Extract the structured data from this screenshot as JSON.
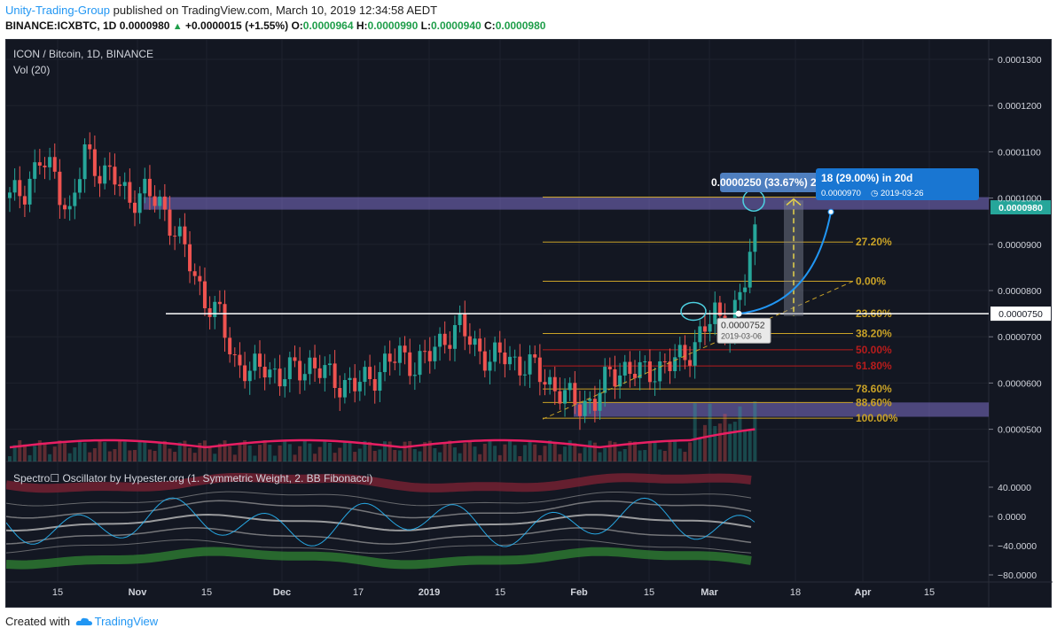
{
  "header": {
    "author": "Unity-Trading-Group",
    "published_text": " published on TradingView.com, March 10, 2019 12:34:58 AEDT",
    "symbol": "BINANCE:ICXBTC, 1D",
    "last": "0.0000980",
    "change": "+0.0000015 (+1.55%)",
    "open_label": "O:",
    "open": "0.0000964",
    "high_label": "H:",
    "high": "0.0000990",
    "low_label": "L:",
    "low": "0.0000940",
    "close_label": "C:",
    "close": "0.0000980"
  },
  "chart": {
    "title": "ICON / Bitcoin, 1D, BINANCE",
    "volume_label": "Vol (20)",
    "colors": {
      "up": "#26a69a",
      "down": "#ef5350",
      "background": "#131722",
      "fib": "#c9a227",
      "fib_red": "#b71c1c",
      "zone": "#7e6fc9",
      "ma": "#e91e63",
      "measure": "#2196f3"
    },
    "price_axis": {
      "ticks": [
        "0.0001300",
        "0.0001200",
        "0.0001100",
        "0.0001000",
        "0.0000900",
        "0.0000800",
        "0.0000700",
        "0.0000600",
        "0.0000500"
      ],
      "current_price_tag": "0.0000980",
      "level_tag": "0.0000750"
    },
    "time_axis": [
      "15",
      "Nov",
      "15",
      "Dec",
      "17",
      "2019",
      "15",
      "Feb",
      "15",
      "Mar",
      "18",
      "Apr",
      "15"
    ],
    "fib_levels": [
      {
        "label": "27.20%",
        "price": 9.05e-05,
        "color": "fib"
      },
      {
        "label": "0.00%",
        "price": 8.2e-05,
        "color": "fib"
      },
      {
        "label": "23.60%",
        "price": 7.5e-05,
        "color": "fib"
      },
      {
        "label": "38.20%",
        "price": 7.07e-05,
        "color": "fib"
      },
      {
        "label": "50.00%",
        "price": 6.72e-05,
        "color": "fib_red"
      },
      {
        "label": "61.80%",
        "price": 6.37e-05,
        "color": "fib_red"
      },
      {
        "label": "78.60%",
        "price": 5.87e-05,
        "color": "fib"
      },
      {
        "label": "88.60%",
        "price": 5.58e-05,
        "color": "fib"
      },
      {
        "label": "100.00%",
        "price": 5.24e-05,
        "color": "fib"
      }
    ],
    "measure_label": "0.0000250 (33.67%) 250",
    "projection_label": "18 (29.00%) in 20d",
    "projection_sublabel": "0.0000970",
    "projection_date": "2019-03-26",
    "point_price": "0.0000752",
    "point_date": "2019-03-06",
    "oscillator_title": "Spectro☐ Oscillator by Hypester.org (1. Symmetric Weight, 2. BB Fibonacci)",
    "oscillator_ticks": [
      "40.0000",
      "0.0000",
      "−40.0000",
      "−80.0000"
    ]
  },
  "chart_data": {
    "type": "candlestick",
    "title": "ICON / Bitcoin, 1D, BINANCE",
    "xlabel": "",
    "ylabel": "",
    "ylim": [
      4.2e-05,
      0.000135
    ],
    "close_series": [
      0.0001,
      0.000102,
      0.000108,
      0.000105,
      9.6e-05,
      0.00011,
      0.000106,
      0.000104,
      0.0001,
      0.000101,
      9.9e-05,
      9.3e-05,
      8.6e-05,
      7.8e-05,
      7.4e-05,
      6.5e-05,
      6.2e-05,
      6.4e-05,
      6.1e-05,
      6.3e-05,
      6.4e-05,
      6.2e-05,
      6e-05,
      5.95e-05,
      6.1e-05,
      6.4e-05,
      6.6e-05,
      6.4e-05,
      6.6e-05,
      7e-05,
      7.2e-05,
      6.8e-05,
      6.5e-05,
      6.6e-05,
      6.4e-05,
      6.3e-05,
      6e-05,
      5.7e-05,
      5.55e-05,
      5.6e-05,
      6.2e-05,
      6.3e-05,
      6.2e-05,
      6.3e-05,
      6.4e-05,
      6.6e-05,
      7e-05,
      7.5e-05,
      7.2e-05,
      8.2e-05,
      9.8e-05
    ]
  },
  "footer": {
    "created_with": "Created with",
    "brand": "TradingView"
  }
}
